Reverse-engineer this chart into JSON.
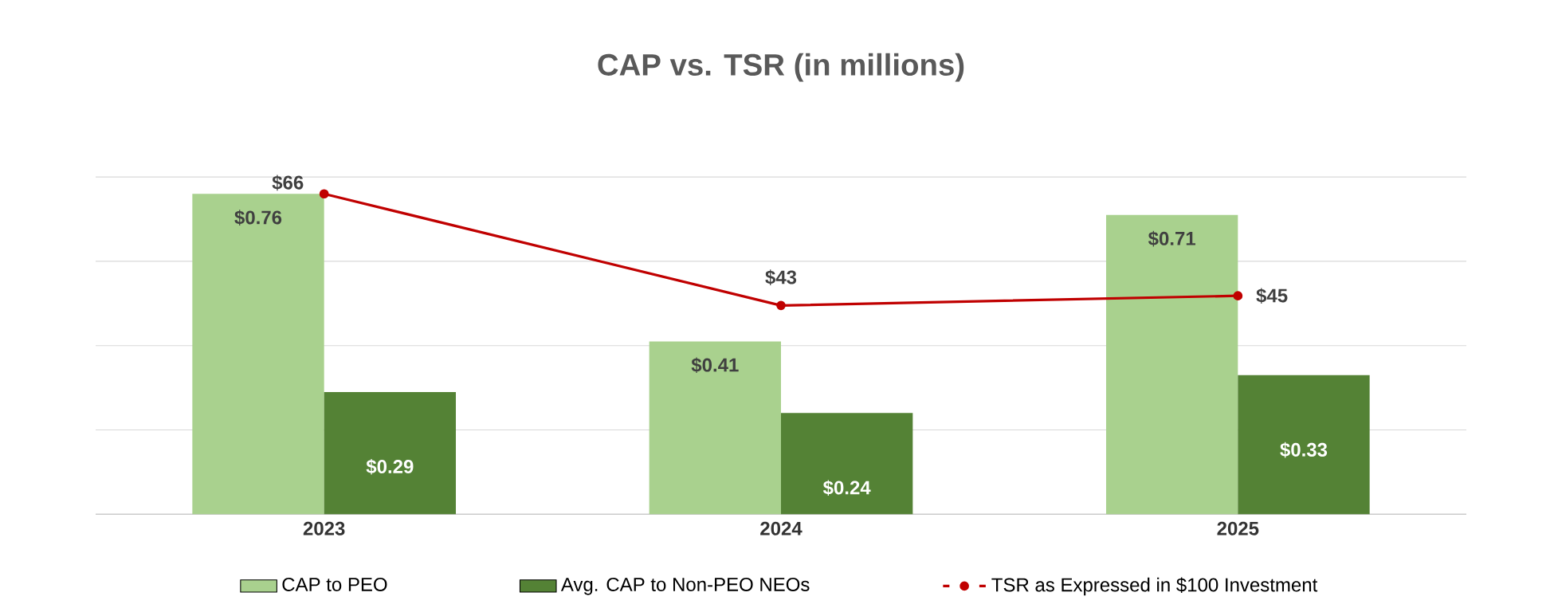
{
  "chart_data": {
    "type": "bar",
    "title": "CAP vs. TSR (in millions)",
    "categories": [
      "2023",
      "2024",
      "2025"
    ],
    "series": [
      {
        "name": "CAP to PEO",
        "color": "#a9d18e",
        "values": [
          0.76,
          0.41,
          0.71
        ],
        "value_labels": [
          "$0.76",
          "$0.41",
          "$0.71"
        ]
      },
      {
        "name": "Avg. CAP to Non-PEO NEOs",
        "color": "#548235",
        "values": [
          0.29,
          0.24,
          0.33
        ],
        "value_labels": [
          "$0.29",
          "$0.24",
          "$0.33"
        ]
      },
      {
        "name": "TSR as Expressed in $100 Investment",
        "type": "line",
        "axis": "y2",
        "color": "#c00000",
        "marker": "circle",
        "values": [
          66,
          43,
          45
        ],
        "value_labels": [
          "$66",
          "$43",
          "$45"
        ]
      }
    ],
    "grid": "y",
    "legend": "bottom",
    "tick_labels": "x"
  }
}
